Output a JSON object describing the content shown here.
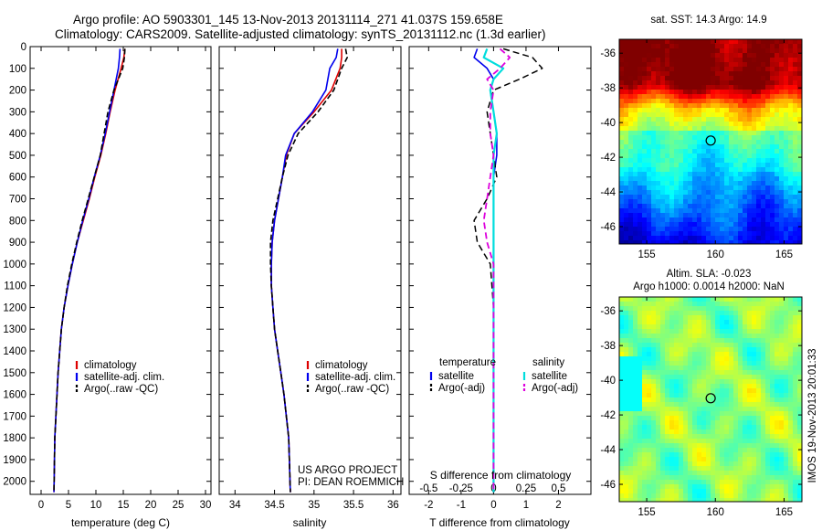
{
  "header": {
    "line1": "Argo profile: AO 5903301_145 13-Nov-2013 20131114_271 41.037S 159.658E",
    "line2": "Climatology: CARS2009. Satellite-adjusted climatology: synTS_20131112.nc (1.3d earlier)"
  },
  "credit": {
    "line1": "US ARGO PROJECT",
    "line2": "PI: DEAN ROEMMICH"
  },
  "side_stamp": "IMOS 19-Nov-2013 20:01:33",
  "colors": {
    "climatology": "#dd0000",
    "satellite": "#0000ee",
    "argo": "#000000",
    "salinity_satellite": "#00dddd",
    "salinity_argo": "#dd00dd"
  },
  "chart_data": [
    {
      "type": "line",
      "id": "temperature",
      "xlabel": "temperature (deg C)",
      "ylabel": "",
      "xlim": [
        -2,
        31
      ],
      "ylim": [
        2060,
        0
      ],
      "xticks": [
        0,
        5,
        10,
        15,
        20,
        25,
        30
      ],
      "yticks": [
        0,
        100,
        200,
        300,
        400,
        500,
        600,
        700,
        800,
        900,
        1000,
        1100,
        1200,
        1300,
        1400,
        1500,
        1600,
        1700,
        1800,
        1900,
        2000
      ],
      "legend": [
        "climatology",
        "satellite-adj. clim.",
        "Argo(..raw -QC)"
      ],
      "legend_position": "center",
      "series": [
        {
          "name": "climatology",
          "x": [
            15.3,
            15.1,
            14.6,
            13.5,
            12.6,
            11.8,
            10.9,
            9.8,
            8.8,
            7.7,
            6.6,
            5.7,
            4.9,
            4.2,
            3.7,
            3.4,
            3.1,
            2.9,
            2.7,
            2.5,
            2.35
          ],
          "y": [
            10,
            50,
            100,
            200,
            300,
            400,
            500,
            600,
            700,
            800,
            900,
            1000,
            1100,
            1200,
            1300,
            1400,
            1500,
            1600,
            1700,
            1800,
            2050
          ]
        },
        {
          "name": "satellite-adj. clim.",
          "x": [
            14.4,
            14.3,
            14.1,
            13.3,
            12.5,
            11.7,
            10.8,
            9.7,
            8.7,
            7.6,
            6.6,
            5.7,
            4.9,
            4.2,
            3.7,
            3.4,
            3.1,
            2.9,
            2.7,
            2.5,
            2.35
          ],
          "y": [
            10,
            50,
            100,
            200,
            300,
            400,
            500,
            600,
            700,
            800,
            900,
            1000,
            1100,
            1200,
            1300,
            1400,
            1500,
            1600,
            1700,
            1800,
            2050
          ]
        },
        {
          "name": "Argo(..raw -QC)",
          "x": [
            15.3,
            15.2,
            14.9,
            13.3,
            12.2,
            11.5,
            10.8,
            9.7,
            8.6,
            7.5,
            6.5,
            5.6,
            4.8,
            4.2,
            3.7,
            3.4,
            3.1,
            2.9,
            2.7,
            2.5,
            2.35
          ],
          "y": [
            10,
            50,
            100,
            200,
            300,
            400,
            500,
            600,
            700,
            800,
            900,
            1000,
            1100,
            1200,
            1300,
            1400,
            1500,
            1600,
            1700,
            1800,
            2050
          ]
        }
      ]
    },
    {
      "type": "line",
      "id": "salinity",
      "xlabel": "salinity",
      "xlim": [
        33.8,
        36.1
      ],
      "ylim": [
        2060,
        0
      ],
      "xticks": [
        34,
        34.5,
        35,
        35.5,
        36
      ],
      "legend": [
        "climatology",
        "satellite-adj. clim.",
        "Argo(..raw -QC)"
      ],
      "legend_position": "center",
      "series": [
        {
          "name": "climatology",
          "x": [
            35.35,
            35.35,
            35.33,
            35.22,
            35.0,
            34.75,
            34.65,
            34.6,
            34.55,
            34.5,
            34.47,
            34.46,
            34.46,
            34.48,
            34.5,
            34.54,
            34.58,
            34.62,
            34.65,
            34.68,
            34.7
          ],
          "y": [
            10,
            50,
            100,
            200,
            300,
            400,
            500,
            600,
            700,
            800,
            900,
            1000,
            1100,
            1200,
            1300,
            1400,
            1500,
            1600,
            1700,
            1800,
            2050
          ]
        },
        {
          "name": "satellite-adj. clim.",
          "x": [
            35.3,
            35.28,
            35.2,
            35.15,
            34.98,
            34.75,
            34.64,
            34.6,
            34.55,
            34.5,
            34.47,
            34.46,
            34.46,
            34.48,
            34.5,
            34.54,
            34.58,
            34.62,
            34.65,
            34.68,
            34.7
          ],
          "y": [
            10,
            50,
            100,
            200,
            300,
            400,
            500,
            600,
            700,
            800,
            900,
            1000,
            1100,
            1200,
            1300,
            1400,
            1500,
            1600,
            1700,
            1800,
            2050
          ]
        },
        {
          "name": "Argo(..raw -QC)",
          "x": [
            35.4,
            35.42,
            35.35,
            35.25,
            35.05,
            34.8,
            34.67,
            34.6,
            34.54,
            34.48,
            34.45,
            34.45,
            34.46,
            34.48,
            34.5,
            34.54,
            34.58,
            34.62,
            34.65,
            34.68,
            34.7
          ],
          "y": [
            10,
            50,
            100,
            200,
            300,
            400,
            500,
            600,
            700,
            800,
            900,
            1000,
            1100,
            1200,
            1300,
            1400,
            1500,
            1600,
            1700,
            1800,
            2050
          ]
        }
      ]
    },
    {
      "type": "line",
      "id": "difference",
      "xlabel": "T difference from climatology",
      "top_axis_label": "S difference from climatology",
      "xlim": [
        -2.6,
        3
      ],
      "ylim": [
        2060,
        0
      ],
      "xticks": [
        -2,
        -1,
        0,
        1,
        2
      ],
      "xtick_labels": [
        "-2",
        "-1",
        "0",
        "1",
        "2"
      ],
      "top_xticks": [
        -2,
        -1,
        0,
        1,
        2
      ],
      "top_xtick_labels": [
        "-0.5",
        "-0.25",
        "0",
        "0.25",
        "0.5"
      ],
      "legend_groups": [
        {
          "title": "temperature",
          "entries": [
            "satellite",
            "Argo(-adj)"
          ]
        },
        {
          "title": "salinity",
          "entries": [
            "satellite",
            "Argo(-adj)"
          ]
        }
      ],
      "series": [
        {
          "name": "temperature satellite",
          "x": [
            -0.5,
            -0.6,
            -0.2,
            0.0,
            -0.1,
            0.0,
            0.1,
            0.1,
            0.0,
            0.0,
            0.0,
            0.0,
            0.0,
            0.0,
            0.0,
            0.0,
            0.0,
            0.0
          ],
          "y": [
            10,
            50,
            100,
            150,
            200,
            300,
            400,
            500,
            600,
            700,
            800,
            900,
            1000,
            1200,
            1400,
            1600,
            1800,
            2050
          ]
        },
        {
          "name": "temperature Argo(-adj)",
          "x": [
            0.3,
            1.2,
            1.5,
            0.8,
            0.0,
            -0.2,
            -0.1,
            0.0,
            0.1,
            -0.2,
            -0.6,
            -0.5,
            -0.1,
            0.0,
            0.0,
            0.0,
            0.0,
            0.0
          ],
          "y": [
            10,
            50,
            100,
            150,
            200,
            300,
            400,
            500,
            600,
            700,
            800,
            900,
            1000,
            1200,
            1400,
            1600,
            1800,
            2050
          ]
        },
        {
          "name": "salinity satellite",
          "x": [
            -0.2,
            -0.3,
            0.3,
            0.0,
            -0.1,
            0.0,
            0.1,
            0.0,
            0.0,
            0.0,
            0.0,
            0.0,
            0.0,
            0.0,
            0.0,
            0.0,
            0.0,
            0.0
          ],
          "y": [
            10,
            50,
            100,
            150,
            200,
            300,
            400,
            500,
            600,
            700,
            800,
            900,
            1000,
            1200,
            1400,
            1600,
            1800,
            2050
          ]
        },
        {
          "name": "salinity Argo(-adj)",
          "x": [
            0.2,
            0.5,
            0.2,
            -0.2,
            0.0,
            -0.1,
            -0.1,
            0.0,
            -0.1,
            -0.2,
            -0.3,
            -0.2,
            0.0,
            0.0,
            0.0,
            0.0,
            0.0,
            0.0
          ],
          "y": [
            10,
            50,
            100,
            150,
            200,
            300,
            400,
            500,
            600,
            700,
            800,
            900,
            1000,
            1200,
            1400,
            1600,
            1800,
            2050
          ]
        }
      ]
    },
    {
      "type": "heatmap",
      "id": "sst-map",
      "title": "sat. SST: 14.3 Argo: 14.9",
      "xlim": [
        153,
        166.3
      ],
      "ylim": [
        -47,
        -35.2
      ],
      "xticks": [
        155,
        160,
        165
      ],
      "yticks": [
        -36,
        -38,
        -40,
        -42,
        -44,
        -46
      ],
      "marker": {
        "lon": 159.658,
        "lat": -41.037
      }
    },
    {
      "type": "heatmap",
      "id": "sla-map",
      "title": "Altim. SLA: -0.023",
      "subtitle": "Argo h1000: 0.0014 h2000: NaN",
      "xlim": [
        153,
        166.3
      ],
      "ylim": [
        -47,
        -35.2
      ],
      "xticks": [
        155,
        160,
        165
      ],
      "yticks": [
        -36,
        -38,
        -40,
        -42,
        -44,
        -46
      ],
      "marker": {
        "lon": 159.658,
        "lat": -41.037
      }
    }
  ]
}
